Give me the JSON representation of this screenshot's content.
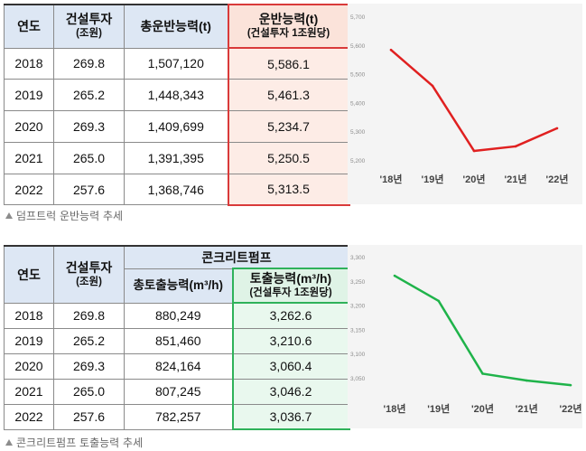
{
  "table1": {
    "headers": {
      "year": "연도",
      "invest": "건설투자",
      "invest_unit": "(조원)",
      "total": "총운반능력(t)",
      "capacity": "운반능력(t)",
      "capacity_sub": "(건설투자 1조원당)"
    },
    "rows": [
      {
        "year": "2018",
        "invest": "269.8",
        "total": "1,507,120",
        "capacity": "5,586.1"
      },
      {
        "year": "2019",
        "invest": "265.2",
        "total": "1,448,343",
        "capacity": "5,461.3"
      },
      {
        "year": "2020",
        "invest": "269.3",
        "total": "1,409,699",
        "capacity": "5,234.7"
      },
      {
        "year": "2021",
        "invest": "265.0",
        "total": "1,391,395",
        "capacity": "5,250.5"
      },
      {
        "year": "2022",
        "invest": "257.6",
        "total": "1,368,746",
        "capacity": "5,313.5"
      }
    ],
    "caption": "덤프트럭 운반능력 추세"
  },
  "table2": {
    "headers": {
      "year": "연도",
      "invest": "건설투자",
      "invest_unit": "(조원)",
      "group": "콘크리트펌프",
      "total": "총토출능력(m³/h)",
      "capacity": "토출능력(m³/h)",
      "capacity_sub": "(건설투자 1조원당)"
    },
    "rows": [
      {
        "year": "2018",
        "invest": "269.8",
        "total": "880,249",
        "capacity": "3,262.6"
      },
      {
        "year": "2019",
        "invest": "265.2",
        "total": "851,460",
        "capacity": "3,210.6"
      },
      {
        "year": "2020",
        "invest": "269.3",
        "total": "824,164",
        "capacity": "3,060.4"
      },
      {
        "year": "2021",
        "invest": "265.0",
        "total": "807,245",
        "capacity": "3,046.2"
      },
      {
        "year": "2022",
        "invest": "257.6",
        "total": "782,257",
        "capacity": "3,036.7"
      }
    ],
    "caption": "콘크리트펌프 토출능력 추세"
  },
  "chart_data": [
    {
      "type": "line",
      "title": "",
      "xlabel": "",
      "ylabel": "",
      "categories": [
        "'18년",
        "'19년",
        "'20년",
        "'21년",
        "'22년"
      ],
      "yticks": [
        "5,700",
        "5,600",
        "5,500",
        "5,400",
        "5,300",
        "5,200"
      ],
      "ylim": [
        5200,
        5700
      ],
      "grid": false,
      "color": "#e02020",
      "series": [
        {
          "values": [
            5586.1,
            5461.3,
            5234.7,
            5250.5,
            5313.5
          ]
        }
      ]
    },
    {
      "type": "line",
      "title": "",
      "xlabel": "",
      "ylabel": "",
      "categories": [
        "'18년",
        "'19년",
        "'20년",
        "'21년",
        "'22년"
      ],
      "yticks": [
        "3,300",
        "3,250",
        "3,200",
        "3,150",
        "3,100",
        "3,050"
      ],
      "ylim": [
        3050,
        3300
      ],
      "grid": false,
      "color": "#1fb34a",
      "series": [
        {
          "values": [
            3262.6,
            3210.6,
            3060.4,
            3046.2,
            3036.7
          ]
        }
      ]
    }
  ]
}
